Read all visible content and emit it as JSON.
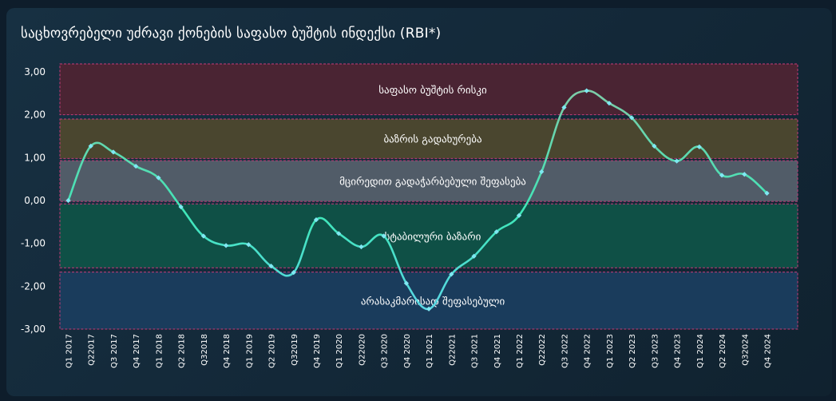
{
  "title": "საცხოვრებელი უძრავი ქონების საფასო ბუშტის ინდექსი (RBI*)",
  "chart_data": {
    "type": "line",
    "ylim": [
      -3.0,
      3.0
    ],
    "yticks": [
      "3,00",
      "2,00",
      "1,00",
      "0,00",
      "-1,00",
      "-2,00",
      "-3,00"
    ],
    "categories": [
      "Q1 2017",
      "Q22017",
      "Q3 2017",
      "Q4 2017",
      "Q1 2018",
      "Q2 2018",
      "Q32018",
      "Q4 2018",
      "Q1 2019",
      "Q2 2019",
      "Q32019",
      "Q4 2019",
      "Q1 2020",
      "Q22020",
      "Q3 2020",
      "Q4 2020",
      "Q1 2021",
      "Q22021",
      "Q3 2021",
      "Q4 2021",
      "Q1 2022",
      "Q22022",
      "Q3 2022",
      "Q4 2022",
      "Q1 2023",
      "Q2 2023",
      "Q3 2023",
      "Q4 2023",
      "Q1 2024",
      "Q2 2024",
      "Q32024",
      "Q4 2024"
    ],
    "values": [
      0.0,
      1.27,
      1.13,
      0.8,
      0.53,
      -0.15,
      -0.83,
      -1.05,
      -1.03,
      -1.53,
      -1.68,
      -0.45,
      -0.77,
      -1.08,
      -0.83,
      -1.93,
      -2.53,
      -1.72,
      -1.3,
      -0.73,
      -0.35,
      0.67,
      2.17,
      2.56,
      2.27,
      1.93,
      1.27,
      0.92,
      1.25,
      0.59,
      0.61,
      0.17
    ],
    "zones": [
      {
        "label": "საფასო ბუშტის რისკი",
        "from": 2.0,
        "to": 3.2,
        "color": "#4a2433"
      },
      {
        "label": "ბაზრის გადახურება",
        "from": 0.98,
        "to": 1.9,
        "color": "#4a462f"
      },
      {
        "label": "მცირედით  გადაჭარბებული შეფასება",
        "from": -0.02,
        "to": 0.93,
        "color": "#515c68"
      },
      {
        "label": "სტაბილური ბაზარი",
        "from": -1.57,
        "to": -0.08,
        "color": "#0f5046"
      },
      {
        "label": "არასაკმარისად შეფასებული",
        "from": -3.0,
        "to": -1.67,
        "color": "#1a3c5c"
      }
    ],
    "line_colors": [
      "#5fd4ee",
      "#3fe6b8",
      "#86c9a6"
    ]
  }
}
